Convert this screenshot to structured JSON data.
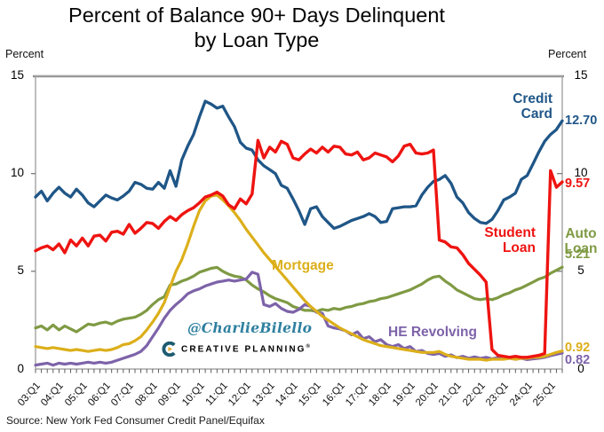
{
  "title": {
    "line1": "Percent of Balance 90+ Days Delinquent",
    "line2": "by Loan Type"
  },
  "y_axis": {
    "left_title": "Percent",
    "right_title": "Percent",
    "ticks": [
      15,
      10,
      5,
      0
    ]
  },
  "source": "Source: New York Fed Consumer Credit Panel/Equifax",
  "watermark": {
    "handle": "@CharlieBilello",
    "brand": "CREATIVE PLANNING",
    "brand_mark": "®",
    "handle_color": "#2e7f9f",
    "brand_color": "#1d5b70",
    "brand_gold": "#e2a62a"
  },
  "chart_data": {
    "type": "line",
    "title": "Percent of Balance 90+ Days Delinquent by Loan Type",
    "x_frequency": "quarterly",
    "x_start": "2003:Q1",
    "x_end": "2025:Q3",
    "ylim": [
      0,
      15
    ],
    "grid": false,
    "legend_position": "inline-annotations",
    "frame_color": "#a3a3a3",
    "x_labels": [
      "03:Q1",
      "04:Q1",
      "05:Q1",
      "06:Q1",
      "07:Q1",
      "08:Q1",
      "09:Q1",
      "10:Q1",
      "11:Q1",
      "12:Q1",
      "13:Q1",
      "14:Q1",
      "15:Q1",
      "16:Q1",
      "17:Q1",
      "18:Q1",
      "19:Q1",
      "20:Q1",
      "21:Q1",
      "22:Q1",
      "23:Q1",
      "24:Q1",
      "25:Q1"
    ],
    "draw_order": [
      3,
      4,
      2,
      0,
      1
    ],
    "series": [
      {
        "name": "Credit Card",
        "color": "#1f5687",
        "end_label": "12.70",
        "line_width": 3.3,
        "values": [
          8.8,
          9.1,
          8.6,
          9.0,
          9.3,
          9.0,
          8.8,
          9.2,
          8.9,
          8.5,
          8.3,
          8.6,
          8.9,
          8.75,
          8.65,
          8.85,
          9.1,
          9.55,
          9.45,
          9.25,
          9.2,
          9.55,
          9.25,
          10.15,
          9.35,
          10.7,
          11.4,
          12.0,
          12.9,
          13.7,
          13.55,
          13.35,
          13.45,
          12.9,
          12.4,
          11.6,
          11.3,
          11.2,
          10.7,
          10.4,
          10.2,
          10.0,
          9.4,
          9.25,
          8.7,
          8.1,
          7.4,
          8.2,
          8.3,
          7.8,
          7.5,
          7.2,
          7.3,
          7.45,
          7.6,
          7.7,
          7.8,
          7.95,
          7.8,
          7.5,
          7.55,
          8.2,
          8.25,
          8.3,
          8.3,
          8.35,
          8.9,
          9.3,
          9.6,
          9.7,
          9.9,
          9.5,
          8.8,
          8.5,
          8.0,
          7.7,
          7.5,
          7.45,
          7.65,
          8.1,
          8.65,
          8.8,
          9.0,
          9.7,
          9.9,
          10.5,
          11.1,
          11.65,
          12.0,
          12.25,
          12.7
        ]
      },
      {
        "name": "Student Loan",
        "color": "#ee1411",
        "end_label": "9.57",
        "line_width": 3.4,
        "values": [
          6.05,
          6.2,
          6.3,
          6.1,
          6.4,
          5.95,
          6.6,
          6.3,
          6.7,
          6.3,
          6.8,
          6.85,
          6.55,
          7.0,
          7.05,
          6.9,
          7.4,
          6.95,
          7.2,
          7.5,
          7.45,
          7.2,
          7.55,
          7.8,
          7.6,
          7.9,
          8.1,
          8.25,
          8.5,
          8.8,
          8.9,
          9.05,
          8.85,
          8.4,
          8.2,
          8.7,
          8.45,
          8.95,
          11.7,
          10.8,
          11.35,
          11.1,
          11.65,
          11.5,
          10.8,
          10.7,
          11.0,
          11.25,
          11.05,
          11.35,
          11.1,
          11.4,
          11.35,
          11.0,
          10.95,
          11.1,
          10.7,
          10.8,
          11.05,
          10.95,
          10.85,
          10.6,
          10.9,
          11.4,
          11.5,
          11.05,
          11.0,
          11.05,
          11.2,
          6.6,
          6.5,
          6.25,
          6.2,
          5.85,
          5.4,
          5.1,
          4.8,
          4.45,
          1.0,
          0.7,
          0.65,
          0.6,
          0.65,
          0.6,
          0.6,
          0.65,
          0.7,
          0.8,
          10.15,
          9.3,
          9.57
        ]
      },
      {
        "name": "Mortgage",
        "color": "#dcaf1a",
        "end_label": "0.92",
        "line_width": 3.2,
        "values": [
          1.15,
          1.1,
          1.05,
          1.1,
          1.05,
          1.0,
          0.95,
          1.0,
          0.95,
          0.9,
          0.95,
          1.0,
          0.95,
          1.0,
          1.1,
          1.25,
          1.3,
          1.45,
          1.65,
          2.0,
          2.4,
          2.85,
          3.4,
          4.2,
          5.0,
          5.6,
          6.4,
          7.3,
          8.1,
          8.6,
          8.85,
          8.9,
          8.65,
          8.35,
          8.0,
          7.6,
          7.15,
          6.75,
          6.35,
          5.95,
          5.6,
          5.25,
          4.9,
          4.55,
          4.2,
          3.85,
          3.5,
          3.2,
          2.95,
          2.7,
          2.5,
          2.3,
          2.1,
          1.95,
          1.8,
          1.65,
          1.5,
          1.4,
          1.3,
          1.2,
          1.15,
          1.1,
          1.05,
          1.0,
          0.95,
          0.9,
          0.85,
          0.85,
          0.85,
          0.9,
          0.75,
          0.65,
          0.6,
          0.55,
          0.5,
          0.5,
          0.5,
          0.45,
          0.5,
          0.5,
          0.5,
          0.55,
          0.5,
          0.55,
          0.55,
          0.6,
          0.6,
          0.65,
          0.75,
          0.85,
          0.92
        ]
      },
      {
        "name": "Auto Loan",
        "color": "#7f9a43",
        "end_label": "5.21",
        "line_width": 3.2,
        "values": [
          2.1,
          2.2,
          2.0,
          2.25,
          2.0,
          2.2,
          2.05,
          1.9,
          2.1,
          2.3,
          2.25,
          2.35,
          2.4,
          2.3,
          2.45,
          2.55,
          2.6,
          2.65,
          2.8,
          3.0,
          3.3,
          3.55,
          3.7,
          4.3,
          4.35,
          4.5,
          4.6,
          4.75,
          4.95,
          5.05,
          5.15,
          5.2,
          5.0,
          4.85,
          4.75,
          4.7,
          4.55,
          4.3,
          4.1,
          3.95,
          3.75,
          3.6,
          3.5,
          3.4,
          3.2,
          3.1,
          3.0,
          3.0,
          2.95,
          3.05,
          3.0,
          3.1,
          3.05,
          3.15,
          3.2,
          3.3,
          3.35,
          3.45,
          3.5,
          3.6,
          3.65,
          3.75,
          3.85,
          3.95,
          4.05,
          4.2,
          4.35,
          4.55,
          4.7,
          4.75,
          4.5,
          4.3,
          4.05,
          3.9,
          3.75,
          3.6,
          3.55,
          3.6,
          3.55,
          3.65,
          3.8,
          3.9,
          4.05,
          4.15,
          4.3,
          4.45,
          4.6,
          4.7,
          4.9,
          5.05,
          5.21
        ]
      },
      {
        "name": "HE Revolving",
        "color": "#7d63a9",
        "end_label": "0.82",
        "line_width": 3.2,
        "values": [
          0.2,
          0.25,
          0.3,
          0.2,
          0.3,
          0.25,
          0.3,
          0.25,
          0.3,
          0.35,
          0.3,
          0.35,
          0.3,
          0.35,
          0.45,
          0.55,
          0.65,
          0.75,
          0.9,
          1.2,
          1.65,
          2.1,
          2.6,
          3.0,
          3.3,
          3.55,
          3.85,
          4.0,
          4.1,
          4.25,
          4.35,
          4.45,
          4.5,
          4.55,
          4.5,
          4.55,
          4.6,
          4.95,
          4.85,
          3.3,
          3.2,
          3.35,
          3.1,
          2.95,
          2.9,
          3.05,
          3.3,
          3.2,
          2.9,
          2.85,
          2.2,
          2.1,
          2.05,
          1.95,
          1.75,
          1.9,
          1.55,
          1.65,
          1.4,
          1.5,
          1.25,
          1.15,
          1.25,
          1.05,
          1.15,
          0.9,
          0.95,
          0.8,
          0.75,
          0.8,
          0.65,
          0.72,
          0.58,
          0.65,
          0.55,
          0.62,
          0.55,
          0.6,
          0.52,
          0.58,
          0.52,
          0.56,
          0.5,
          0.55,
          0.48,
          0.52,
          0.55,
          0.6,
          0.68,
          0.75,
          0.82
        ]
      }
    ]
  }
}
